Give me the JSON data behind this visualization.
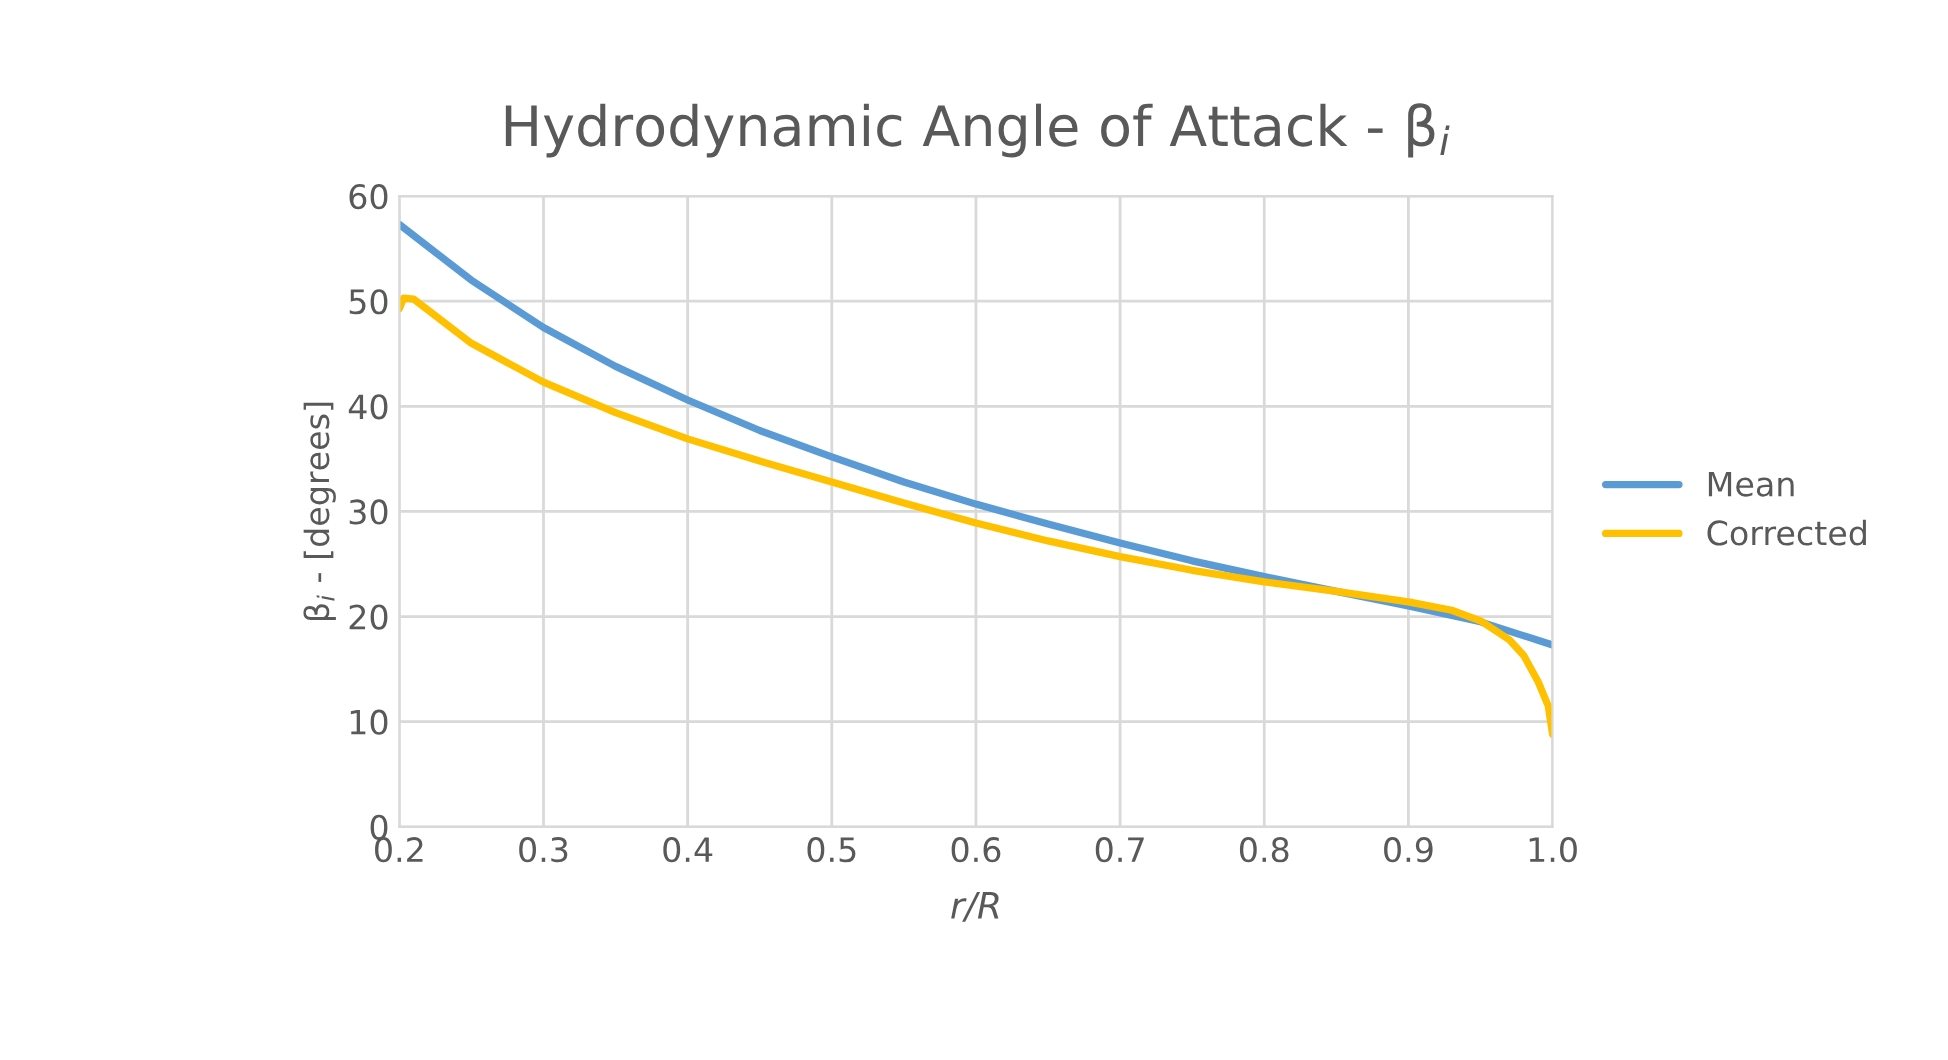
{
  "chart_data": {
    "type": "line",
    "title": "Hydrodynamic Angle of Attack - β$_{i}$",
    "xlabel": "r/R",
    "ylabel": "β$_{i}$ - [degrees]",
    "series": [
      {
        "name": "Mean",
        "color": "#5b9bd5",
        "x": [
          0.2,
          0.25,
          0.3,
          0.35,
          0.4,
          0.45,
          0.5,
          0.55,
          0.6,
          0.65,
          0.7,
          0.75,
          0.8,
          0.85,
          0.9,
          0.95,
          1.0
        ],
        "values": [
          57.3,
          52,
          47.5,
          43.8,
          40.6,
          37.7,
          35.2,
          32.8,
          30.7,
          28.8,
          27,
          25.3,
          23.8,
          22.4,
          21,
          19.5,
          17.3
        ]
      },
      {
        "name": "Corrected",
        "color": "#ffc000",
        "x": [
          0.2,
          0.203,
          0.21,
          0.25,
          0.3,
          0.35,
          0.4,
          0.45,
          0.5,
          0.55,
          0.6,
          0.65,
          0.7,
          0.75,
          0.8,
          0.85,
          0.9,
          0.93,
          0.95,
          0.97,
          0.98,
          0.99,
          0.997,
          1.0
        ],
        "values": [
          49.3,
          50.3,
          50.2,
          46,
          42.3,
          39.4,
          36.9,
          34.8,
          32.8,
          30.8,
          28.9,
          27.2,
          25.7,
          24.4,
          23.3,
          22.4,
          21.4,
          20.6,
          19.6,
          17.8,
          16.3,
          13.8,
          11.5,
          8.8
        ]
      }
    ],
    "xlim": [
      0.2,
      1.0
    ],
    "xticks": [
      0.2,
      0.3,
      0.4,
      0.5,
      0.6,
      0.7,
      0.8,
      0.9,
      {
        "value": 1.0,
        "label": "1.0"
      }
    ],
    "ylim": [
      0,
      60
    ],
    "yticks": [
      0,
      10,
      20,
      30,
      40,
      50,
      60
    ],
    "grid": true,
    "legend": "right",
    "marker": "none",
    "line_style": "solid"
  }
}
